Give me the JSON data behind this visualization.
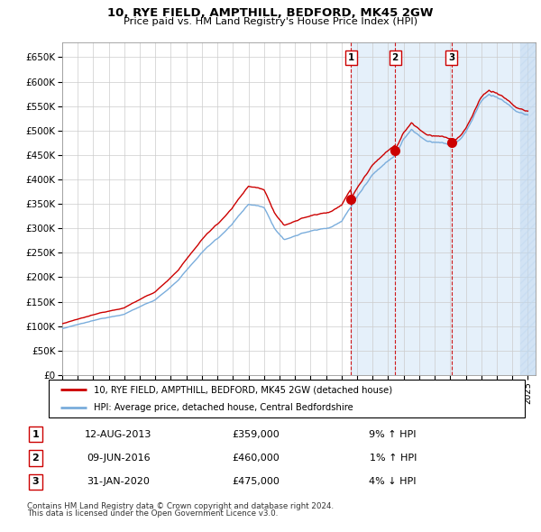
{
  "title": "10, RYE FIELD, AMPTHILL, BEDFORD, MK45 2GW",
  "subtitle": "Price paid vs. HM Land Registry's House Price Index (HPI)",
  "ylabel_ticks": [
    "£0",
    "£50K",
    "£100K",
    "£150K",
    "£200K",
    "£250K",
    "£300K",
    "£350K",
    "£400K",
    "£450K",
    "£500K",
    "£550K",
    "£600K",
    "£650K"
  ],
  "ytick_vals": [
    0,
    50000,
    100000,
    150000,
    200000,
    250000,
    300000,
    350000,
    400000,
    450000,
    500000,
    550000,
    600000,
    650000
  ],
  "xlim_start": 1995.0,
  "xlim_end": 2025.5,
  "ylim": [
    0,
    680000
  ],
  "hpi_color": "#7aaddc",
  "price_color": "#cc0000",
  "sale_marker_color": "#cc0000",
  "dashed_line_color": "#cc0000",
  "legend_label_price": "10, RYE FIELD, AMPTHILL, BEDFORD, MK45 2GW (detached house)",
  "legend_label_hpi": "HPI: Average price, detached house, Central Bedfordshire",
  "sales": [
    {
      "num": 1,
      "date": "12-AUG-2013",
      "price": 359000,
      "year": 2013.617,
      "hpi_pct": "9% ↑ HPI"
    },
    {
      "num": 2,
      "date": "09-JUN-2016",
      "price": 460000,
      "year": 2016.44,
      "hpi_pct": "1% ↑ HPI"
    },
    {
      "num": 3,
      "date": "31-JAN-2020",
      "price": 475000,
      "year": 2020.083,
      "hpi_pct": "4% ↓ HPI"
    }
  ],
  "footnote1": "Contains HM Land Registry data © Crown copyright and database right 2024.",
  "footnote2": "This data is licensed under the Open Government Licence v3.0.",
  "shade_start": 2013.617
}
